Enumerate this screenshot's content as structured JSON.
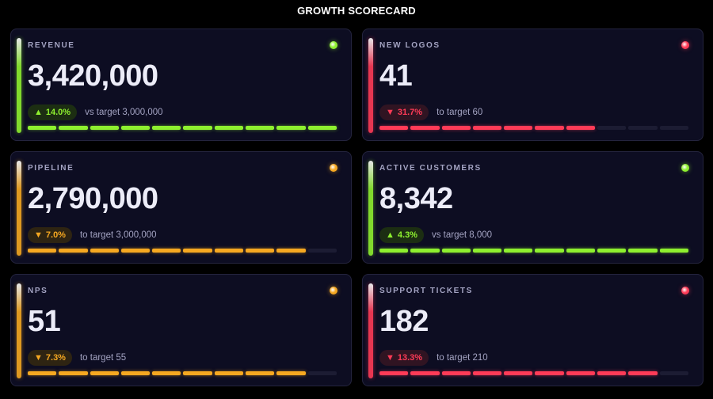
{
  "page": {
    "title": "GROWTH SCORECARD"
  },
  "status_colors": {
    "ok": "#8ef02f",
    "warn": "#f6a821",
    "bad": "#ff3b57"
  },
  "cards": [
    {
      "label": "REVENUE",
      "value": "3,420,000",
      "status": "ok",
      "delta": "14.0%",
      "direction": "up",
      "arrow": "▲",
      "note": "vs target 3,000,000",
      "progress_segments_filled": 10,
      "progress_segments_total": 10
    },
    {
      "label": "NEW LOGOS",
      "value": "41",
      "status": "bad",
      "delta": "31.7%",
      "direction": "down",
      "arrow": "▼",
      "note": "to target 60",
      "progress_segments_filled": 7,
      "progress_segments_total": 10
    },
    {
      "label": "PIPELINE",
      "value": "2,790,000",
      "status": "warn",
      "delta": "7.0%",
      "direction": "down",
      "arrow": "▼",
      "note": "to target 3,000,000",
      "progress_segments_filled": 9,
      "progress_segments_total": 10
    },
    {
      "label": "ACTIVE CUSTOMERS",
      "value": "8,342",
      "status": "ok",
      "delta": "4.3%",
      "direction": "up",
      "arrow": "▲",
      "note": "vs target 8,000",
      "progress_segments_filled": 10,
      "progress_segments_total": 10
    },
    {
      "label": "NPS",
      "value": "51",
      "status": "warn",
      "delta": "7.3%",
      "direction": "down",
      "arrow": "▼",
      "note": "to target 55",
      "progress_segments_filled": 9,
      "progress_segments_total": 10
    },
    {
      "label": "SUPPORT TICKETS",
      "value": "182",
      "status": "bad",
      "delta": "13.3%",
      "direction": "down",
      "arrow": "▼",
      "note": "to target 210",
      "progress_segments_filled": 9,
      "progress_segments_total": 10
    }
  ]
}
